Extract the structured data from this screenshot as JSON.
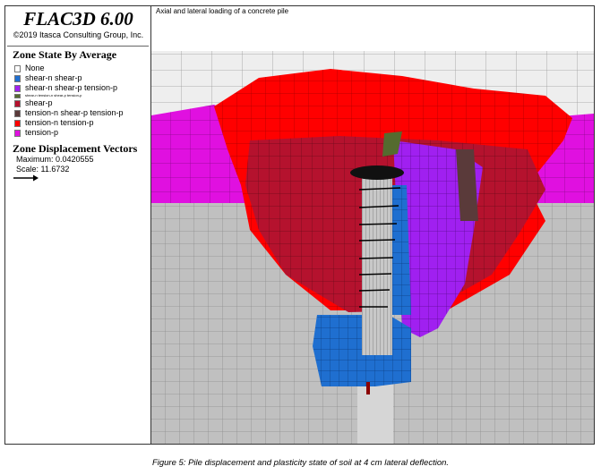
{
  "app": {
    "title": "FLAC3D 6.00",
    "copyright": "©2019 Itasca Consulting Group, Inc."
  },
  "plot_title": "Axial and lateral loading of a concrete pile",
  "zone_state": {
    "title": "Zone State By Average",
    "items": [
      {
        "label": "None",
        "color": "#ffffff"
      },
      {
        "label": "shear-n shear-p",
        "color": "#1f6fd0"
      },
      {
        "label": "shear-n shear-p tension-p",
        "color": "#a020f0"
      },
      {
        "label": "shear-n tension-n shear-p tension-p",
        "color": "#556b2f"
      },
      {
        "label": "shear-p",
        "color": "#b5122e"
      },
      {
        "label": "tension-n shear-p tension-p",
        "color": "#5a3a3a"
      },
      {
        "label": "tension-n tension-p",
        "color": "#ff0000"
      },
      {
        "label": "tension-p",
        "color": "#e010e0"
      }
    ]
  },
  "displacement": {
    "title": "Zone Displacement Vectors",
    "maximum": "Maximum: 0.0420555",
    "scale": "Scale: 11.6732",
    "arrow_icon": "right-arrow-icon"
  },
  "caption": "Figure 5: Pile displacement and plasticity state of soil at 4 cm lateral deflection."
}
